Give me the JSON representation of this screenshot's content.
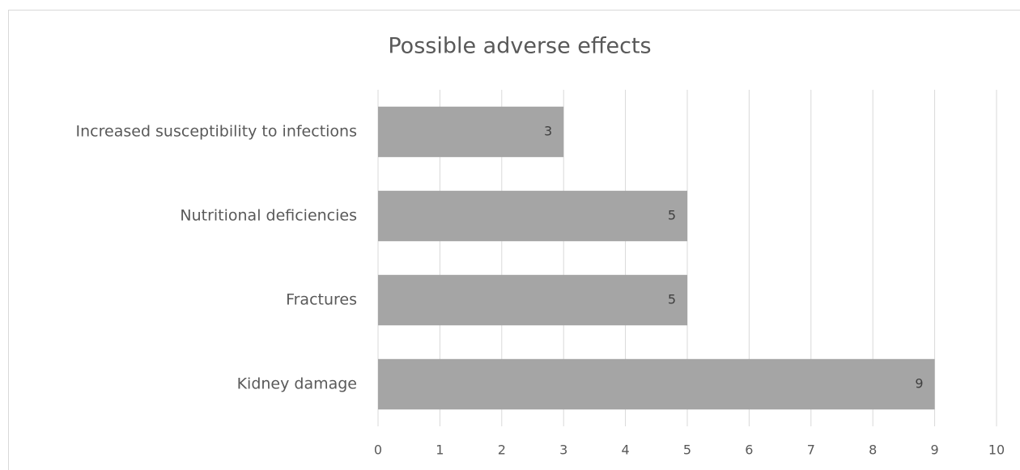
{
  "chart_data": {
    "type": "bar",
    "orientation": "horizontal",
    "title": "Possible adverse effects",
    "categories": [
      "Increased susceptibility to infections",
      "Nutritional deficiencies",
      "Fractures",
      "Kidney damage"
    ],
    "values": [
      3,
      5,
      5,
      9
    ],
    "color": "#a5a5a5",
    "xlim": [
      0,
      10
    ],
    "xticks": [
      0,
      1,
      2,
      3,
      4,
      5,
      6,
      7,
      8,
      9,
      10
    ],
    "grid": true
  }
}
